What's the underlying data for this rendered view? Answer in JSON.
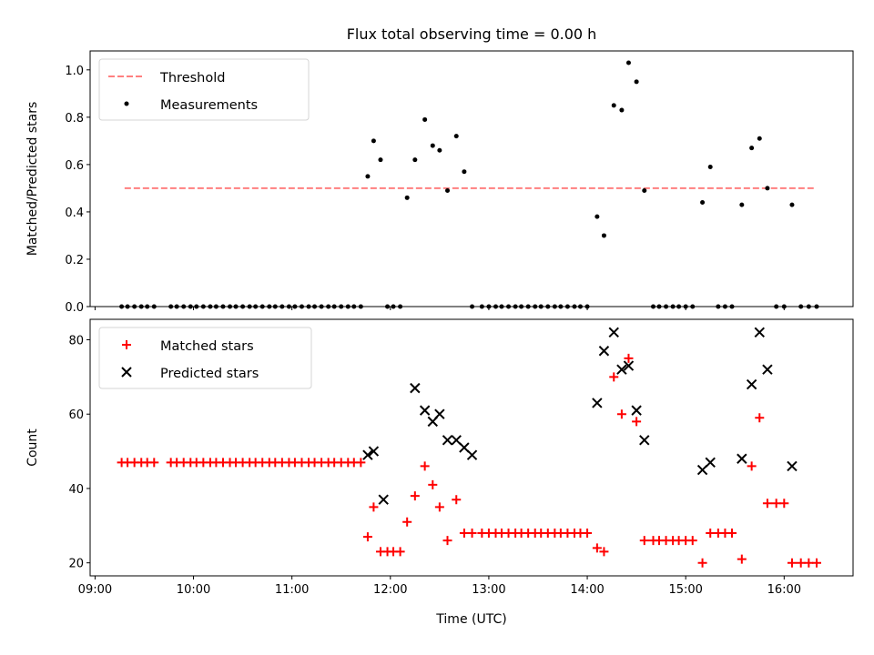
{
  "chart_data": [
    {
      "type": "scatter",
      "title": "Flux total observing time = 0.00 h",
      "xlabel": "",
      "ylabel": "Matched/Predicted stars",
      "x_unit": "hours (UTC)",
      "xlim": [
        8.95,
        16.7
      ],
      "ylim": [
        0.0,
        1.08
      ],
      "yticks": [
        0.0,
        0.2,
        0.4,
        0.6,
        0.8,
        1.0
      ],
      "ytick_labels": [
        "0.0",
        "0.2",
        "0.4",
        "0.6",
        "0.8",
        "1.0"
      ],
      "legend_position": "top-left",
      "grid": false,
      "series": [
        {
          "name": "Threshold",
          "style": "dashed-line",
          "color": "#ff7f7f",
          "x": [
            9.3,
            16.3
          ],
          "y": [
            0.5,
            0.5
          ]
        },
        {
          "name": "Measurements",
          "style": "dot",
          "color": "#000000",
          "x": [
            9.27,
            9.33,
            9.4,
            9.47,
            9.53,
            9.6,
            9.77,
            9.83,
            9.9,
            9.97,
            10.03,
            10.1,
            10.17,
            10.23,
            10.3,
            10.37,
            10.43,
            10.5,
            10.57,
            10.63,
            10.7,
            10.77,
            10.83,
            10.9,
            10.97,
            11.03,
            11.1,
            11.17,
            11.23,
            11.3,
            11.37,
            11.43,
            11.5,
            11.57,
            11.63,
            11.7,
            11.77,
            11.83,
            11.9,
            11.97,
            12.03,
            12.1,
            12.17,
            12.25,
            12.35,
            12.43,
            12.5,
            12.58,
            12.67,
            12.75,
            12.83,
            12.93,
            13.0,
            13.07,
            13.13,
            13.2,
            13.27,
            13.33,
            13.4,
            13.47,
            13.53,
            13.6,
            13.67,
            13.73,
            13.8,
            13.87,
            13.93,
            14.0,
            14.1,
            14.17,
            14.27,
            14.35,
            14.42,
            14.5,
            14.58,
            14.67,
            14.73,
            14.8,
            14.87,
            14.93,
            15.0,
            15.07,
            15.17,
            15.25,
            15.33,
            15.4,
            15.47,
            15.57,
            15.67,
            15.75,
            15.83,
            15.92,
            16.0,
            16.08,
            16.17,
            16.25,
            16.33
          ],
          "y": [
            0,
            0,
            0,
            0,
            0,
            0,
            0,
            0,
            0,
            0,
            0,
            0,
            0,
            0,
            0,
            0,
            0,
            0,
            0,
            0,
            0,
            0,
            0,
            0,
            0,
            0,
            0,
            0,
            0,
            0,
            0,
            0,
            0,
            0,
            0,
            0,
            0.55,
            0.7,
            0.62,
            0,
            0,
            0,
            0.46,
            0.62,
            0.79,
            0.68,
            0.66,
            0.49,
            0.72,
            0.57,
            0,
            0,
            0,
            0,
            0,
            0,
            0,
            0,
            0,
            0,
            0,
            0,
            0,
            0,
            0,
            0,
            0,
            0,
            0.38,
            0.3,
            0.85,
            0.83,
            1.03,
            0.95,
            0.49,
            0,
            0,
            0,
            0,
            0,
            0,
            0,
            0.44,
            0.59,
            0,
            0,
            0,
            0.43,
            0.67,
            0.71,
            0.5,
            0,
            0,
            0.43,
            0,
            0,
            0
          ]
        }
      ]
    },
    {
      "type": "scatter",
      "title": "",
      "xlabel": "Time (UTC)",
      "ylabel": "Count",
      "x_unit": "hours (UTC)",
      "xlim": [
        8.95,
        16.7
      ],
      "ylim": [
        16.5,
        85.5
      ],
      "yticks": [
        20,
        40,
        60,
        80
      ],
      "ytick_labels": [
        "20",
        "40",
        "60",
        "80"
      ],
      "xticks": [
        9,
        10,
        11,
        12,
        13,
        14,
        15,
        16
      ],
      "xtick_labels": [
        "09:00",
        "10:00",
        "11:00",
        "12:00",
        "13:00",
        "14:00",
        "15:00",
        "16:00"
      ],
      "legend_position": "top-left",
      "grid": false,
      "series": [
        {
          "name": "Matched stars",
          "style": "plus",
          "color": "#ff0000",
          "x": [
            9.27,
            9.33,
            9.4,
            9.47,
            9.53,
            9.6,
            9.77,
            9.83,
            9.9,
            9.97,
            10.03,
            10.1,
            10.17,
            10.23,
            10.3,
            10.37,
            10.43,
            10.5,
            10.57,
            10.63,
            10.7,
            10.77,
            10.83,
            10.9,
            10.97,
            11.03,
            11.1,
            11.17,
            11.23,
            11.3,
            11.37,
            11.43,
            11.5,
            11.57,
            11.63,
            11.7,
            11.77,
            11.83,
            11.9,
            11.97,
            12.03,
            12.1,
            12.17,
            12.25,
            12.35,
            12.43,
            12.5,
            12.58,
            12.67,
            12.75,
            12.83,
            12.93,
            13.0,
            13.07,
            13.13,
            13.2,
            13.27,
            13.33,
            13.4,
            13.47,
            13.53,
            13.6,
            13.67,
            13.73,
            13.8,
            13.87,
            13.93,
            14.0,
            14.1,
            14.17,
            14.27,
            14.35,
            14.42,
            14.5,
            14.58,
            14.67,
            14.73,
            14.8,
            14.87,
            14.93,
            15.0,
            15.07,
            15.17,
            15.25,
            15.33,
            15.4,
            15.47,
            15.57,
            15.67,
            15.75,
            15.83,
            15.92,
            16.0,
            16.08,
            16.17,
            16.25,
            16.33
          ],
          "y": [
            47,
            47,
            47,
            47,
            47,
            47,
            47,
            47,
            47,
            47,
            47,
            47,
            47,
            47,
            47,
            47,
            47,
            47,
            47,
            47,
            47,
            47,
            47,
            47,
            47,
            47,
            47,
            47,
            47,
            47,
            47,
            47,
            47,
            47,
            47,
            47,
            27,
            35,
            23,
            23,
            23,
            23,
            31,
            38,
            46,
            41,
            35,
            26,
            37,
            28,
            28,
            28,
            28,
            28,
            28,
            28,
            28,
            28,
            28,
            28,
            28,
            28,
            28,
            28,
            28,
            28,
            28,
            28,
            24,
            23,
            70,
            60,
            75,
            58,
            26,
            26,
            26,
            26,
            26,
            26,
            26,
            26,
            20,
            28,
            28,
            28,
            28,
            21,
            46,
            59,
            36,
            36,
            36,
            20,
            20,
            20,
            20
          ]
        },
        {
          "name": "Predicted stars",
          "style": "x",
          "color": "#000000",
          "x": [
            11.77,
            11.83,
            11.93,
            12.25,
            12.35,
            12.43,
            12.5,
            12.58,
            12.67,
            12.75,
            12.83,
            14.1,
            14.17,
            14.27,
            14.35,
            14.42,
            14.5,
            14.58,
            15.17,
            15.25,
            15.57,
            15.67,
            15.75,
            15.83,
            16.08
          ],
          "y": [
            49,
            50,
            37,
            67,
            61,
            58,
            60,
            53,
            53,
            51,
            49,
            63,
            77,
            82,
            72,
            73,
            61,
            53,
            45,
            47,
            48,
            68,
            82,
            72,
            46
          ]
        }
      ]
    }
  ]
}
